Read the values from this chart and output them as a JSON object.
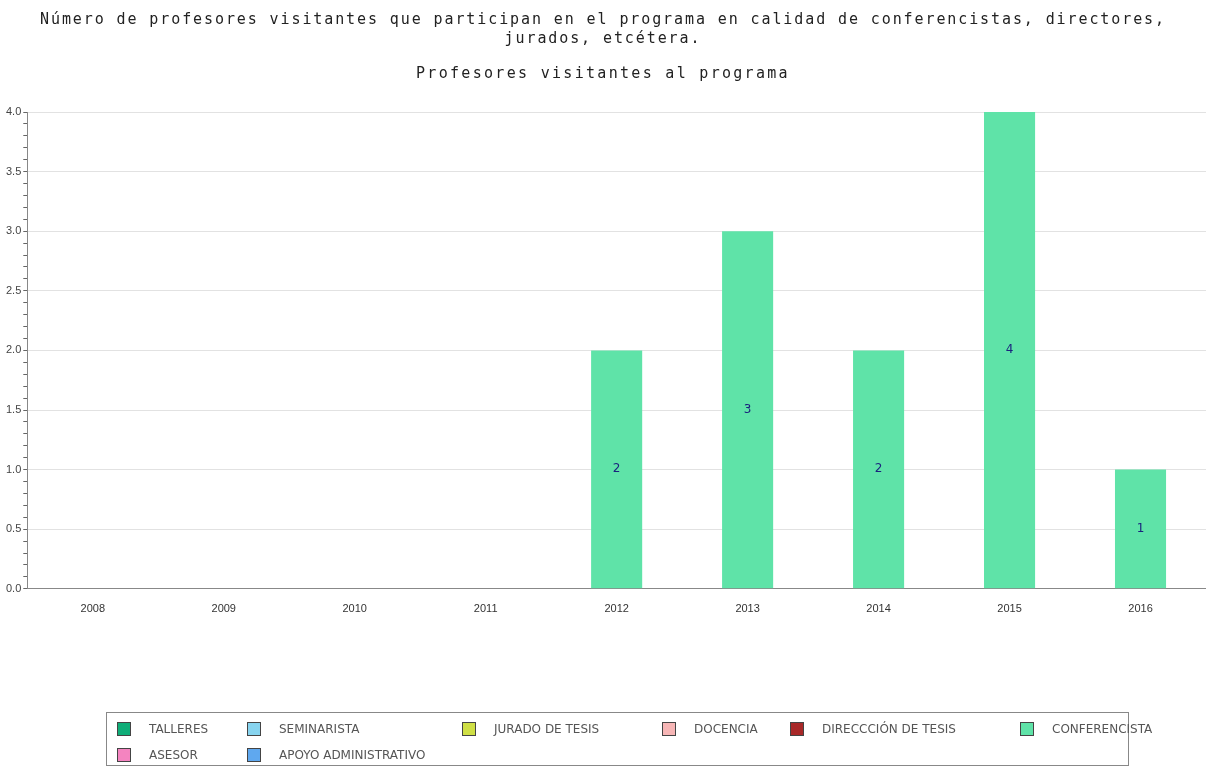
{
  "chart_data": {
    "type": "bar",
    "title": "Número de profesores visitantes que participan en el programa en calidad de conferencistas, directores, jurados, etcétera.",
    "subtitle": "Profesores visitantes al programa",
    "categories": [
      "2008",
      "2009",
      "2010",
      "2011",
      "2012",
      "2013",
      "2014",
      "2015",
      "2016"
    ],
    "stacked": true,
    "legend": "bottom",
    "grid": "y",
    "ylim": [
      0,
      4
    ],
    "yticks": [
      {
        "value": 0,
        "label": "0.0"
      },
      {
        "value": 0.1,
        "label": null
      },
      {
        "value": 0.2,
        "label": null
      },
      {
        "value": 0.3,
        "label": null
      },
      {
        "value": 0.4,
        "label": null
      },
      {
        "value": 0.5,
        "label": "0.5"
      },
      {
        "value": 0.6,
        "label": null
      },
      {
        "value": 0.7,
        "label": null
      },
      {
        "value": 0.8,
        "label": null
      },
      {
        "value": 0.9,
        "label": null
      },
      {
        "value": 1,
        "label": "1.0"
      },
      {
        "value": 1.1,
        "label": null
      },
      {
        "value": 1.2,
        "label": null
      },
      {
        "value": 1.3,
        "label": null
      },
      {
        "value": 1.4,
        "label": null
      },
      {
        "value": 1.5,
        "label": "1.5"
      },
      {
        "value": 1.6,
        "label": null
      },
      {
        "value": 1.7,
        "label": null
      },
      {
        "value": 1.8,
        "label": null
      },
      {
        "value": 1.9,
        "label": null
      },
      {
        "value": 2,
        "label": "2.0"
      },
      {
        "value": 2.1,
        "label": null
      },
      {
        "value": 2.2,
        "label": null
      },
      {
        "value": 2.3,
        "label": null
      },
      {
        "value": 2.4,
        "label": null
      },
      {
        "value": 2.5,
        "label": "2.5"
      },
      {
        "value": 2.6,
        "label": null
      },
      {
        "value": 2.7,
        "label": null
      },
      {
        "value": 2.8,
        "label": null
      },
      {
        "value": 2.9,
        "label": null
      },
      {
        "value": 3,
        "label": "3.0"
      },
      {
        "value": 3.1,
        "label": null
      },
      {
        "value": 3.2,
        "label": null
      },
      {
        "value": 3.3,
        "label": null
      },
      {
        "value": 3.4,
        "label": null
      },
      {
        "value": 3.5,
        "label": "3.5"
      },
      {
        "value": 3.6,
        "label": null
      },
      {
        "value": 3.7,
        "label": null
      },
      {
        "value": 3.8,
        "label": null
      },
      {
        "value": 3.9,
        "label": null
      },
      {
        "value": 4,
        "label": "4.0"
      }
    ],
    "series": [
      {
        "name": "TALLERES",
        "color": "#0fad78",
        "values": [
          0,
          0,
          0,
          0,
          0,
          0,
          0,
          0,
          0
        ]
      },
      {
        "name": "SEMINARISTA",
        "color": "#87d4ef",
        "values": [
          0,
          0,
          0,
          0,
          0,
          0,
          0,
          0,
          0
        ]
      },
      {
        "name": "JURADO DE TESIS",
        "color": "#cfdf45",
        "values": [
          0,
          0,
          0,
          0,
          0,
          0,
          0,
          0,
          0
        ]
      },
      {
        "name": "DOCENCIA",
        "color": "#f7b6b6",
        "values": [
          0,
          0,
          0,
          0,
          0,
          0,
          0,
          0,
          0
        ]
      },
      {
        "name": "DIRECCCIÓN DE TESIS",
        "color": "#a82828",
        "values": [
          0,
          0,
          0,
          0,
          0,
          0,
          0,
          0,
          0
        ]
      },
      {
        "name": "CONFERENCISTA",
        "color": "#5fe3a8",
        "values": [
          0,
          0,
          0,
          0,
          2,
          3,
          2,
          4,
          1
        ],
        "value_labels": [
          null,
          null,
          null,
          null,
          "2",
          "3",
          "2",
          "4",
          "1"
        ]
      },
      {
        "name": "ASESOR",
        "color": "#f484c0",
        "values": [
          0,
          0,
          0,
          0,
          0,
          0,
          0,
          0,
          0
        ]
      },
      {
        "name": "APOYO ADMINISTRATIVO",
        "color": "#5fa8ef",
        "values": [
          0,
          0,
          0,
          0,
          0,
          0,
          0,
          0,
          0
        ]
      }
    ]
  }
}
